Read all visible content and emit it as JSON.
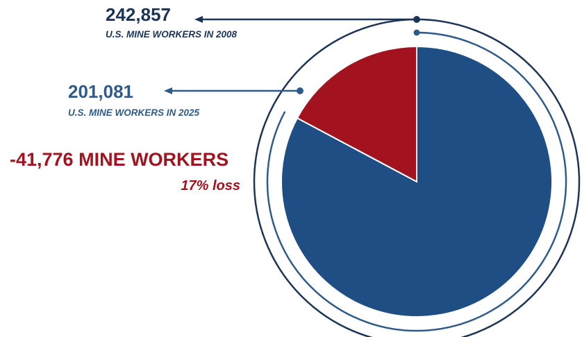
{
  "chart_data": {
    "type": "pie",
    "slices": [
      {
        "label": "U.S. MINE WORKERS IN 2025",
        "value": 201081,
        "color": "#1f4e85"
      },
      {
        "label": "MINE WORKERS LOST",
        "value": 41776,
        "color": "#a3121f"
      }
    ],
    "total_2008": {
      "value": "242,857",
      "label": "U.S. MINE WORKERS IN 2008"
    },
    "total_2025": {
      "value": "201,081",
      "label": "U.S. MINE WORKERS IN 2025"
    },
    "change": {
      "headline": "-41,776 MINE WORKERS",
      "percent": "17% loss"
    }
  },
  "colors": {
    "navy_text": "#1c3557",
    "blue_text": "#2e5b8a",
    "red": "#a3121f",
    "pie_blue": "#1f4e85"
  }
}
